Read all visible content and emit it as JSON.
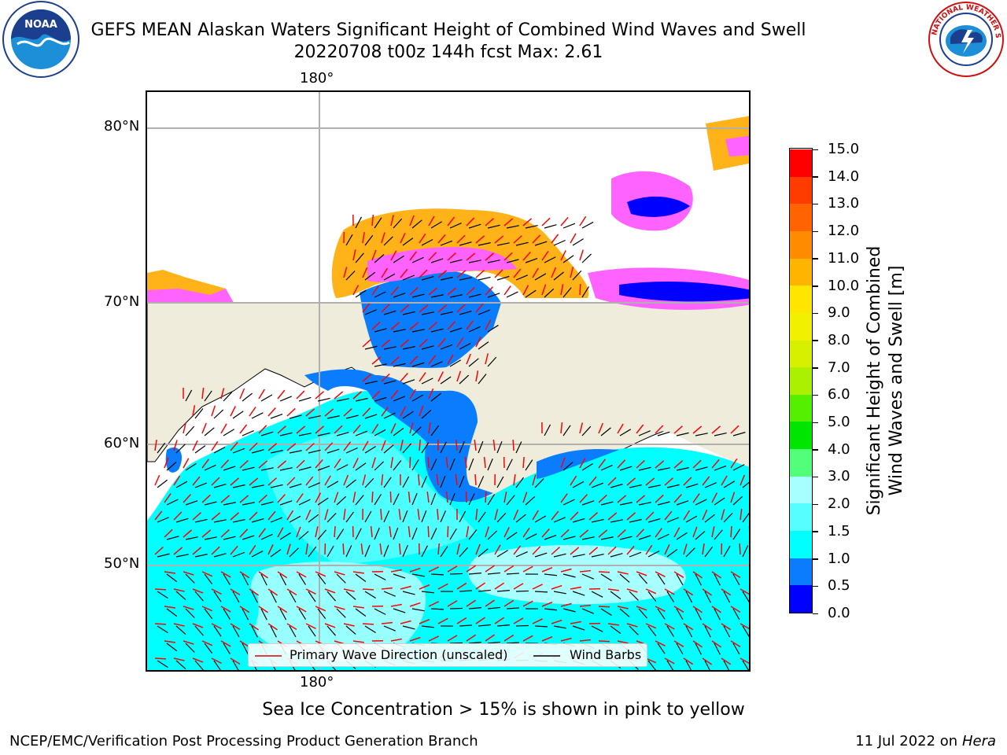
{
  "header": {
    "title_line1": "GEFS MEAN Alaskan Waters Significant Height of Combined Wind Waves and Swell",
    "title_line2": "20220708 t00z 144h fcst   Max: 2.61",
    "left_logo": {
      "icon": "noaa-logo",
      "text": "NOAA",
      "ring_text": "NATIONAL OCEANIC AND ATMOSPHERIC ADMINISTRATION · U.S. DEPARTMENT OF COMMERCE"
    },
    "right_logo": {
      "icon": "nws-logo",
      "ring_text": "NATIONAL WEATHER SERVICE"
    }
  },
  "map": {
    "lon_label_top": "180°",
    "lon_label_bottom": "180°",
    "lat_labels": [
      "80°N",
      "70°N",
      "60°N",
      "50°N"
    ],
    "colors": {
      "land": "#efecdc",
      "ocean_deep": "#00ffff",
      "ocean_mid": "#56ffff",
      "ocean_light": "#a8ffff",
      "shallow": "#0a7dff",
      "ice_pink": "#ff63ff",
      "ice_orange": "#ffb319",
      "ice_yellow": "#ffd94a",
      "wave_arrow": "#ff0000",
      "wind_barb": "#000000",
      "grid": "#b0b0b0"
    },
    "legend": {
      "wave_label": "Primary Wave Direction (unscaled)",
      "barb_label": "Wind Barbs",
      "wave_color": "#e00000",
      "barb_color": "#000000"
    }
  },
  "colorbar": {
    "label_line1": "Significant Height of Combined",
    "label_line2": "Wind Waves and Swell [m]",
    "ticks": [
      "15.0",
      "14.0",
      "13.0",
      "12.0",
      "11.0",
      "10.0",
      "9.0",
      "8.0",
      "7.0",
      "6.0",
      "5.0",
      "4.0",
      "3.0",
      "2.0",
      "1.5",
      "1.0",
      "0.5",
      "0.0"
    ],
    "bins": [
      {
        "color": "#0000ff"
      },
      {
        "color": "#0a7dff"
      },
      {
        "color": "#00ffff"
      },
      {
        "color": "#56ffff"
      },
      {
        "color": "#a8ffff"
      },
      {
        "color": "#52ff7a"
      },
      {
        "color": "#00e600"
      },
      {
        "color": "#55f000"
      },
      {
        "color": "#aaf000"
      },
      {
        "color": "#d6f000"
      },
      {
        "color": "#f0f000"
      },
      {
        "color": "#ffe600"
      },
      {
        "color": "#ffb400"
      },
      {
        "color": "#ff8c00"
      },
      {
        "color": "#ff6400"
      },
      {
        "color": "#ff3c00"
      },
      {
        "color": "#ff0000"
      }
    ]
  },
  "notes": {
    "sea_ice": "Sea Ice Concentration > 15% is shown in pink to yellow"
  },
  "footer": {
    "left": "NCEP/EMC/Verification Post Processing Product Generation Branch",
    "right_date": "11 Jul 2022 on ",
    "right_host": "Hera"
  }
}
